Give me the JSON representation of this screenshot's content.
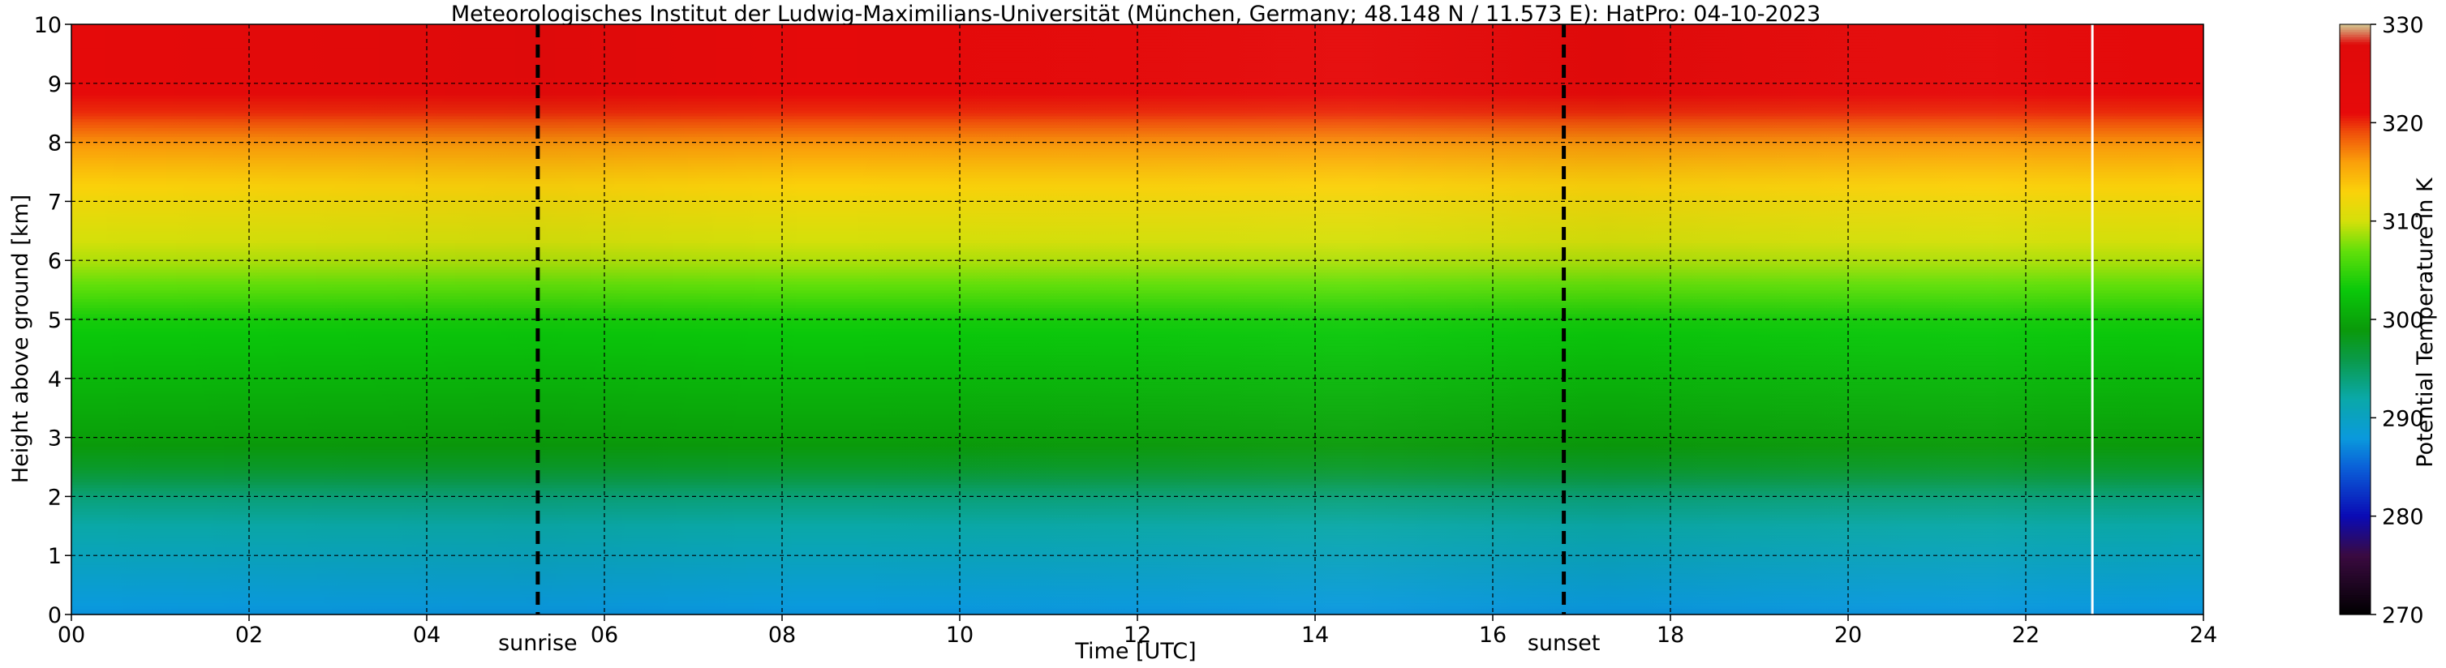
{
  "chart_data": {
    "type": "heatmap",
    "title": "Meteorologisches Institut der Ludwig-Maximilians-Universität (München, Germany; 48.148 N / 11.573 E):    HatPro: 04-10-2023",
    "xlabel": "Time [UTC]",
    "ylabel": "Height above ground [km]",
    "xlim": [
      0,
      24
    ],
    "ylim": [
      0,
      10
    ],
    "x_ticks": [
      "00",
      "02",
      "04",
      "06",
      "08",
      "10",
      "12",
      "14",
      "16",
      "18",
      "20",
      "22",
      "24"
    ],
    "y_ticks": [
      "0",
      "1",
      "2",
      "3",
      "4",
      "5",
      "6",
      "7",
      "8",
      "9",
      "10"
    ],
    "grid": true,
    "colorbar": {
      "label": "Potential Temperature in K",
      "range": [
        270,
        330
      ],
      "ticks": [
        "270",
        "280",
        "290",
        "300",
        "310",
        "320",
        "330"
      ]
    },
    "annotations": [
      {
        "label": "sunrise",
        "x": 5.25
      },
      {
        "label": "sunset",
        "x": 16.8
      }
    ],
    "data_gap_x": 22.75,
    "profile": {
      "height_km": [
        0,
        0.5,
        1,
        1.5,
        2,
        2.5,
        3,
        3.5,
        4,
        4.5,
        5,
        5.5,
        6,
        6.5,
        7,
        7.5,
        8,
        8.5,
        9,
        9.5,
        10
      ],
      "theta_K": [
        287.5,
        289,
        290.5,
        292,
        294,
        297.5,
        299.5,
        300.5,
        301.5,
        302.5,
        303.5,
        306.5,
        309,
        310.5,
        312,
        314,
        316.5,
        320,
        321.5,
        322,
        322
      ]
    },
    "colors": {
      "scale": [
        "#000000",
        "#3a0a40",
        "#0a0ab4",
        "#0a60d8",
        "#0a9adc",
        "#0aa8a8",
        "#0a9a48",
        "#0a9a0a",
        "#0ac80a",
        "#62e00a",
        "#d4e00a",
        "#fad20a",
        "#faa00a",
        "#f0500a",
        "#e60a0a",
        "#e00a0a",
        "#d4c890"
      ]
    }
  }
}
